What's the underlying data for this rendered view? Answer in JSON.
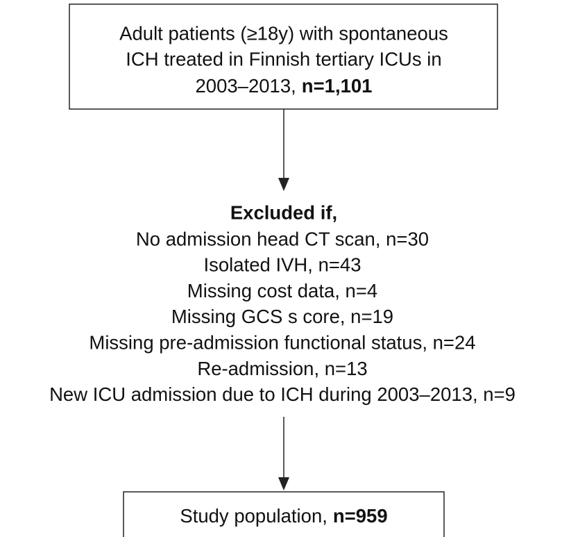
{
  "nodes": [
    {
      "lines": [
        "Adult patients (≥18y) with spontaneous",
        "ICH treated in Finnish tertiary ICUs in",
        "2003–2013,"
      ],
      "count": "n=1,101"
    },
    {
      "heading": "Excluded if,",
      "items": [
        "No admission head CT scan, n=30",
        "Isolated IVH, n=43",
        "Missing cost data, n=4",
        "Missing GCS s core, n=19",
        "Missing pre-admission functional status, n=24",
        "Re-admission, n=13",
        "New ICU admission due to ICH during 2003–2013, n=9"
      ]
    },
    {
      "label": "Study population,",
      "count": "n=959"
    }
  ]
}
